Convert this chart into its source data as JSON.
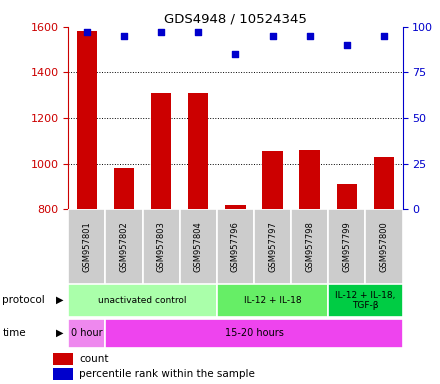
{
  "title": "GDS4948 / 10524345",
  "samples": [
    "GSM957801",
    "GSM957802",
    "GSM957803",
    "GSM957804",
    "GSM957796",
    "GSM957797",
    "GSM957798",
    "GSM957799",
    "GSM957800"
  ],
  "counts": [
    1580,
    980,
    1310,
    1310,
    820,
    1055,
    1060,
    910,
    1030
  ],
  "percentile_ranks": [
    97,
    95,
    97,
    97,
    85,
    95,
    95,
    90,
    95
  ],
  "ylim_left": [
    800,
    1600
  ],
  "ylim_right": [
    0,
    100
  ],
  "yticks_left": [
    800,
    1000,
    1200,
    1400,
    1600
  ],
  "yticks_right": [
    0,
    25,
    50,
    75,
    100
  ],
  "bar_color": "#cc0000",
  "dot_color": "#0000cc",
  "bar_bottom": 800,
  "protocol_groups": [
    {
      "label": "unactivated control",
      "start": 0,
      "end": 4,
      "color": "#aaffaa"
    },
    {
      "label": "IL-12 + IL-18",
      "start": 4,
      "end": 7,
      "color": "#66ee66"
    },
    {
      "label": "IL-12 + IL-18,\nTGF-β",
      "start": 7,
      "end": 9,
      "color": "#00cc44"
    }
  ],
  "time_groups": [
    {
      "label": "0 hour",
      "start": 0,
      "end": 1,
      "color": "#ee88ee"
    },
    {
      "label": "15-20 hours",
      "start": 1,
      "end": 9,
      "color": "#ee44ee"
    }
  ],
  "sample_box_color": "#cccccc",
  "left_axis_color": "#cc0000",
  "right_axis_color": "#0000cc",
  "left_label": "protocol",
  "time_label": "time"
}
